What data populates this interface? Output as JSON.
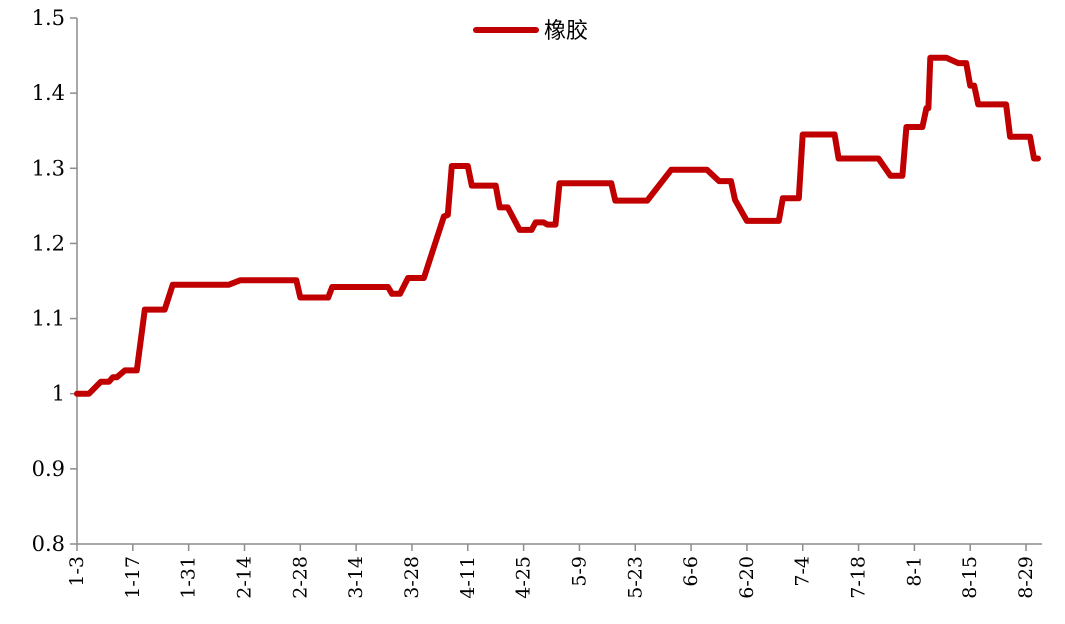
{
  "chart_data": {
    "type": "line",
    "title": "",
    "xlabel": "",
    "ylabel": "",
    "ylim": [
      0.8,
      1.5
    ],
    "y_ticks": [
      "0.8",
      "0.9",
      "1",
      "1.1",
      "1.2",
      "1.3",
      "1.4",
      "1.5"
    ],
    "y_tick_values": [
      0.8,
      0.9,
      1.0,
      1.1,
      1.2,
      1.3,
      1.4,
      1.5
    ],
    "x_tick_labels": [
      "1-3",
      "1-17",
      "1-31",
      "2-14",
      "2-28",
      "3-14",
      "3-28",
      "4-11",
      "4-25",
      "5-9",
      "5-23",
      "6-6",
      "6-20",
      "7-4",
      "7-18",
      "8-1",
      "8-15",
      "8-29"
    ],
    "x_tick_day_offsets": [
      0,
      14,
      28,
      42,
      56,
      70,
      84,
      98,
      112,
      126,
      140,
      154,
      168,
      182,
      196,
      210,
      224,
      238
    ],
    "xlim_days": [
      0,
      242
    ],
    "grid": false,
    "legend_position": "top-center",
    "series": [
      {
        "name": "橡胶",
        "color": "#c00000",
        "points": [
          [
            0,
            1.0
          ],
          [
            3,
            1.0
          ],
          [
            6,
            1.016
          ],
          [
            8,
            1.016
          ],
          [
            9,
            1.022
          ],
          [
            10,
            1.022
          ],
          [
            12,
            1.031
          ],
          [
            15,
            1.031
          ],
          [
            17,
            1.112
          ],
          [
            22,
            1.112
          ],
          [
            24,
            1.145
          ],
          [
            38,
            1.145
          ],
          [
            41,
            1.151
          ],
          [
            55,
            1.151
          ],
          [
            56,
            1.128
          ],
          [
            63,
            1.128
          ],
          [
            64,
            1.142
          ],
          [
            78,
            1.142
          ],
          [
            79,
            1.133
          ],
          [
            81,
            1.133
          ],
          [
            83,
            1.154
          ],
          [
            87,
            1.154
          ],
          [
            92,
            1.236
          ],
          [
            93,
            1.238
          ],
          [
            94,
            1.303
          ],
          [
            98,
            1.303
          ],
          [
            99,
            1.277
          ],
          [
            105,
            1.277
          ],
          [
            106,
            1.248
          ],
          [
            108,
            1.248
          ],
          [
            111,
            1.218
          ],
          [
            114,
            1.218
          ],
          [
            115,
            1.228
          ],
          [
            117,
            1.228
          ],
          [
            118,
            1.225
          ],
          [
            120,
            1.225
          ],
          [
            121,
            1.28
          ],
          [
            134,
            1.28
          ],
          [
            135,
            1.257
          ],
          [
            143,
            1.257
          ],
          [
            149,
            1.298
          ],
          [
            158,
            1.298
          ],
          [
            161,
            1.283
          ],
          [
            164,
            1.283
          ],
          [
            165,
            1.258
          ],
          [
            168,
            1.23
          ],
          [
            176,
            1.23
          ],
          [
            177,
            1.26
          ],
          [
            181,
            1.26
          ],
          [
            182,
            1.345
          ],
          [
            190,
            1.345
          ],
          [
            191,
            1.313
          ],
          [
            201,
            1.313
          ],
          [
            204,
            1.29
          ],
          [
            207,
            1.29
          ],
          [
            208,
            1.355
          ],
          [
            212,
            1.355
          ],
          [
            213,
            1.38
          ],
          [
            213.5,
            1.38
          ],
          [
            214,
            1.447
          ],
          [
            218,
            1.447
          ],
          [
            221,
            1.44
          ],
          [
            223,
            1.44
          ],
          [
            224,
            1.41
          ],
          [
            225,
            1.41
          ],
          [
            226,
            1.385
          ],
          [
            233,
            1.385
          ],
          [
            234,
            1.342
          ],
          [
            239,
            1.342
          ],
          [
            240,
            1.313
          ],
          [
            241,
            1.313
          ]
        ]
      }
    ]
  }
}
